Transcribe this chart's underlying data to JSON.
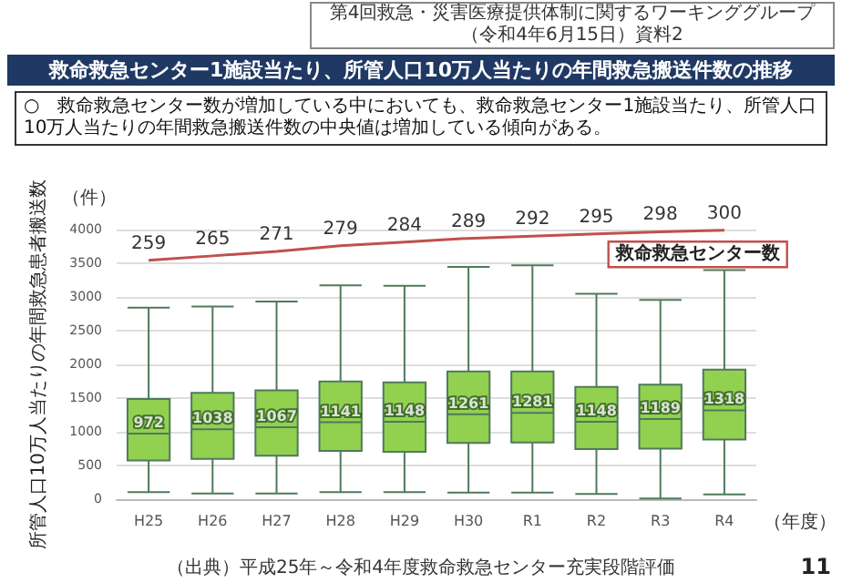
{
  "chart_data": {
    "type": "box",
    "title": "救命救急センター1施設当たり、所管人口10万人当たりの年間救急搬送件数の推移",
    "subtitle": "○　救命救急センター数が増加している中においても、救命救急センター1施設当たり、所管人口10万人当たりの年間救急搬送件数の中央値は増加している傾向がある。",
    "ylabel": "所管人口10万人当たりの年間救急患者搬送数",
    "xlabel": "（年度）",
    "annotations": [
      "第4回救急・災害医療提供体制に関するワーキンググループ（令和4年6月15日）資料2",
      "（件）",
      "（出典）平成25年～令和4年度救命救急センター充実段階評価",
      "11"
    ],
    "categories": [
      "H25",
      "H26",
      "H27",
      "H28",
      "H29",
      "H30",
      "R1",
      "R2",
      "R3",
      "R4"
    ],
    "series": [
      {
        "type": "box",
        "color": "#92d050",
        "value_labels": [
          "972",
          "1038",
          "1067",
          "1141",
          "1148",
          "1261",
          "1281",
          "1148",
          "1189",
          "1318"
        ],
        "boxes": [
          {
            "low": 105,
            "q1": 576,
            "median": 972,
            "q3": 1488,
            "high": 2842
          },
          {
            "low": 84,
            "q1": 597,
            "median": 1038,
            "q3": 1579,
            "high": 2857
          },
          {
            "low": 84,
            "q1": 646,
            "median": 1067,
            "q3": 1615,
            "high": 2934
          },
          {
            "low": 105,
            "q1": 716,
            "median": 1141,
            "q3": 1748,
            "high": 3173
          },
          {
            "low": 105,
            "q1": 702,
            "median": 1148,
            "q3": 1734,
            "high": 3166
          },
          {
            "low": 98,
            "q1": 835,
            "median": 1261,
            "q3": 1895,
            "high": 3447
          },
          {
            "low": 98,
            "q1": 842,
            "median": 1281,
            "q3": 1895,
            "high": 3468
          },
          {
            "low": 77,
            "q1": 744,
            "median": 1148,
            "q3": 1664,
            "high": 3047
          },
          {
            "low": 10,
            "q1": 751,
            "median": 1189,
            "q3": 1699,
            "high": 2955
          },
          {
            "low": 70,
            "q1": 884,
            "median": 1318,
            "q3": 1923,
            "high": 3398
          }
        ]
      },
      {
        "type": "line",
        "name": "救命救急センター数",
        "color": "#c0504d",
        "axis": "y2",
        "values": [
          259,
          265,
          271,
          279,
          284,
          289,
          292,
          295,
          298,
          300
        ]
      }
    ],
    "ylim": [
      0,
      4000
    ],
    "yticks": [
      0,
      500,
      1000,
      1500,
      2000,
      2500,
      3000,
      3500,
      4000
    ],
    "y2lim": [
      -68,
      301
    ],
    "grid": "y",
    "marker": "none",
    "data_labels": true,
    "legend": false
  }
}
